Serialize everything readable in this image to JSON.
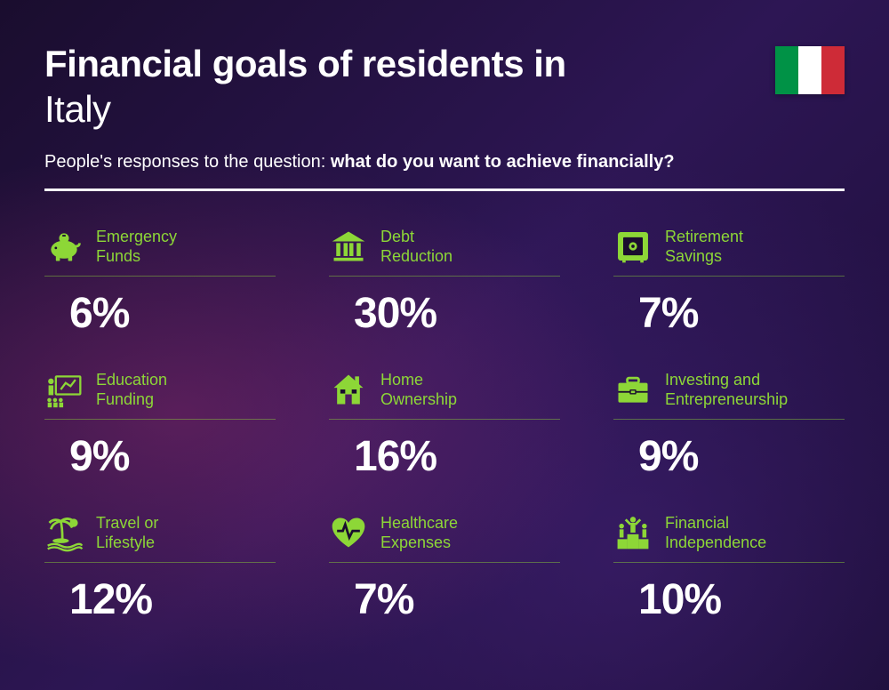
{
  "title_line1": "Financial goals of residents in",
  "title_line2": "Italy",
  "subtitle_prefix": "People's responses to the question: ",
  "subtitle_bold": "what do you want to achieve financially?",
  "accent_color": "#8dd737",
  "text_color": "#ffffff",
  "flag": {
    "stripes": [
      "#009246",
      "#ffffff",
      "#ce2b37"
    ]
  },
  "items": [
    {
      "label": "Emergency\nFunds",
      "value": "6%",
      "icon": "piggy-bank"
    },
    {
      "label": "Debt\nReduction",
      "value": "30%",
      "icon": "bank"
    },
    {
      "label": "Retirement\nSavings",
      "value": "7%",
      "icon": "safe"
    },
    {
      "label": "Education\nFunding",
      "value": "9%",
      "icon": "presentation"
    },
    {
      "label": "Home\nOwnership",
      "value": "16%",
      "icon": "house"
    },
    {
      "label": "Investing and\nEntrepreneurship",
      "value": "9%",
      "icon": "briefcase"
    },
    {
      "label": "Travel or\nLifestyle",
      "value": "12%",
      "icon": "palm"
    },
    {
      "label": "Healthcare\nExpenses",
      "value": "7%",
      "icon": "heart"
    },
    {
      "label": "Financial\nIndependence",
      "value": "10%",
      "icon": "podium"
    }
  ]
}
